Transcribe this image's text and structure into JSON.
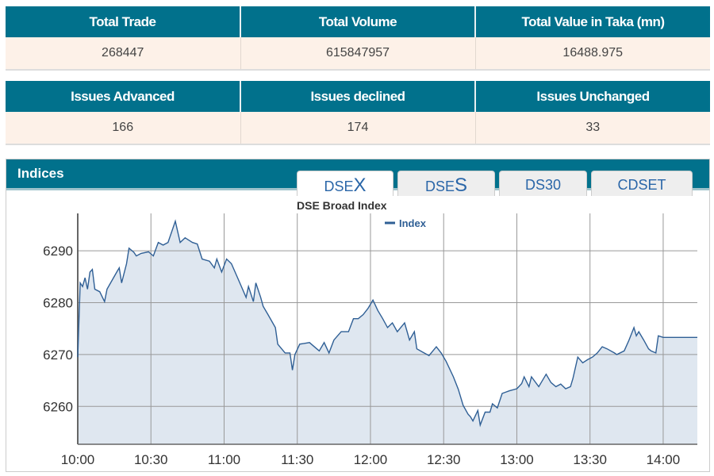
{
  "summary1": {
    "headers": [
      "Total Trade",
      "Total Volume",
      "Total Value in Taka (mn)"
    ],
    "values": [
      "268447",
      "615847957",
      "16488.975"
    ]
  },
  "summary2": {
    "headers": [
      "Issues Advanced",
      "Issues declined",
      "Issues Unchanged"
    ],
    "values": [
      "166",
      "174",
      "33"
    ]
  },
  "indices": {
    "title": "Indices",
    "tabs": [
      {
        "pre": "DSE",
        "big": "X",
        "active": true
      },
      {
        "pre": "DSE",
        "big": "S"
      },
      {
        "label": "DS30"
      },
      {
        "label": "CDSET"
      }
    ]
  },
  "colors": {
    "header": "#01718c",
    "row": "#fdf1e8",
    "line": "#2f5f95",
    "fill": "#dfe7f0",
    "tab_text": "#2a66a8"
  },
  "chart_data": {
    "type": "area",
    "title": "DSE Broad Index",
    "legend": {
      "entries": [
        "Index"
      ],
      "placement": "top-center"
    },
    "grid": true,
    "xlim": [
      "10:00",
      "14:14"
    ],
    "ylim": [
      6252.7,
      6297.2
    ],
    "xticks": [
      "10:00",
      "10:30",
      "11:00",
      "11:30",
      "12:00",
      "12:30",
      "13:00",
      "13:30",
      "14:00"
    ],
    "yticks": [
      6260,
      6270,
      6280,
      6290
    ],
    "series": [
      {
        "name": "Index",
        "points": [
          [
            "10:00",
            6269.5
          ],
          [
            "10:01",
            6283.8
          ],
          [
            "10:02",
            6283.1
          ],
          [
            "10:03",
            6284.8
          ],
          [
            "10:04",
            6282.6
          ],
          [
            "10:05",
            6285.9
          ],
          [
            "10:06",
            6286.4
          ],
          [
            "10:07",
            6282.6
          ],
          [
            "10:09",
            6282.1
          ],
          [
            "10:11",
            6280.2
          ],
          [
            "10:12",
            6282.6
          ],
          [
            "10:16",
            6285.9
          ],
          [
            "10:17",
            6286.7
          ],
          [
            "10:18",
            6283.8
          ],
          [
            "10:20",
            6287.5
          ],
          [
            "10:21",
            6290.5
          ],
          [
            "10:23",
            6289.7
          ],
          [
            "10:24",
            6289.0
          ],
          [
            "10:26",
            6289.5
          ],
          [
            "10:29",
            6289.8
          ],
          [
            "10:31",
            6289.0
          ],
          [
            "10:33",
            6291.6
          ],
          [
            "10:35",
            6291.1
          ],
          [
            "10:37",
            6291.6
          ],
          [
            "10:40",
            6295.7
          ],
          [
            "10:42",
            6291.6
          ],
          [
            "10:44",
            6292.5
          ],
          [
            "10:47",
            6291.6
          ],
          [
            "10:49",
            6291.3
          ],
          [
            "10:51",
            6288.4
          ],
          [
            "10:54",
            6288.0
          ],
          [
            "10:56",
            6286.7
          ],
          [
            "10:57",
            6288.4
          ],
          [
            "10:59",
            6285.9
          ],
          [
            "11:01",
            6288.4
          ],
          [
            "11:03",
            6287.5
          ],
          [
            "11:06",
            6284.3
          ],
          [
            "11:09",
            6281.0
          ],
          [
            "11:10",
            6283.1
          ],
          [
            "11:12",
            6280.2
          ],
          [
            "11:13",
            6283.8
          ],
          [
            "11:15",
            6281.0
          ],
          [
            "11:16",
            6279.3
          ],
          [
            "11:18",
            6277.7
          ],
          [
            "11:21",
            6275.2
          ],
          [
            "11:22",
            6272.0
          ],
          [
            "11:25",
            6270.3
          ],
          [
            "11:27",
            6270.3
          ],
          [
            "11:28",
            6267.0
          ],
          [
            "11:29",
            6270.0
          ],
          [
            "11:31",
            6272.0
          ],
          [
            "11:35",
            6272.3
          ],
          [
            "11:38",
            6271.1
          ],
          [
            "11:39",
            6270.7
          ],
          [
            "11:41",
            6272.3
          ],
          [
            "11:43",
            6270.3
          ],
          [
            "11:45",
            6272.8
          ],
          [
            "11:48",
            6274.4
          ],
          [
            "11:51",
            6274.4
          ],
          [
            "11:53",
            6276.9
          ],
          [
            "11:55",
            6276.9
          ],
          [
            "11:57",
            6277.7
          ],
          [
            "11:59",
            6278.9
          ],
          [
            "12:01",
            6280.5
          ],
          [
            "12:03",
            6278.5
          ],
          [
            "12:05",
            6276.9
          ],
          [
            "12:07",
            6275.2
          ],
          [
            "12:09",
            6276.1
          ],
          [
            "12:11",
            6274.4
          ],
          [
            "12:14",
            6276.1
          ],
          [
            "12:16",
            6272.8
          ],
          [
            "12:18",
            6274.4
          ],
          [
            "12:19",
            6271.1
          ],
          [
            "12:22",
            6270.3
          ],
          [
            "12:24",
            6269.8
          ],
          [
            "12:27",
            6271.5
          ],
          [
            "12:29",
            6270.3
          ],
          [
            "12:31",
            6268.7
          ],
          [
            "12:34",
            6265.7
          ],
          [
            "12:36",
            6263.3
          ],
          [
            "12:38",
            6260.2
          ],
          [
            "12:40",
            6258.5
          ],
          [
            "12:41",
            6258.0
          ],
          [
            "12:42",
            6257.2
          ],
          [
            "12:44",
            6259.2
          ],
          [
            "12:45",
            6256.4
          ],
          [
            "12:47",
            6258.9
          ],
          [
            "12:49",
            6258.9
          ],
          [
            "12:50",
            6260.5
          ],
          [
            "12:52",
            6259.7
          ],
          [
            "12:54",
            6262.5
          ],
          [
            "12:57",
            6263.0
          ],
          [
            "13:00",
            6263.4
          ],
          [
            "13:02",
            6264.4
          ],
          [
            "13:03",
            6265.7
          ],
          [
            "13:05",
            6263.8
          ],
          [
            "13:06",
            6265.7
          ],
          [
            "13:09",
            6263.8
          ],
          [
            "13:10",
            6264.6
          ],
          [
            "13:12",
            6266.2
          ],
          [
            "13:14",
            6264.6
          ],
          [
            "13:16",
            6263.8
          ],
          [
            "13:18",
            6264.3
          ],
          [
            "13:20",
            6263.4
          ],
          [
            "13:22",
            6263.8
          ],
          [
            "13:23",
            6265.4
          ],
          [
            "13:25",
            6269.5
          ],
          [
            "13:27",
            6268.4
          ],
          [
            "13:29",
            6269.0
          ],
          [
            "13:31",
            6269.5
          ],
          [
            "13:33",
            6270.3
          ],
          [
            "13:35",
            6271.5
          ],
          [
            "13:37",
            6271.1
          ],
          [
            "13:40",
            6270.3
          ],
          [
            "13:41",
            6270.0
          ],
          [
            "13:44",
            6270.7
          ],
          [
            "13:46",
            6272.8
          ],
          [
            "13:48",
            6275.2
          ],
          [
            "13:49",
            6273.6
          ],
          [
            "13:50",
            6274.4
          ],
          [
            "13:52",
            6272.8
          ],
          [
            "13:54",
            6271.1
          ],
          [
            "13:55",
            6270.7
          ],
          [
            "13:57",
            6270.3
          ],
          [
            "13:58",
            6273.6
          ],
          [
            "14:00",
            6273.3
          ],
          [
            "14:14",
            6273.3
          ]
        ]
      }
    ]
  }
}
